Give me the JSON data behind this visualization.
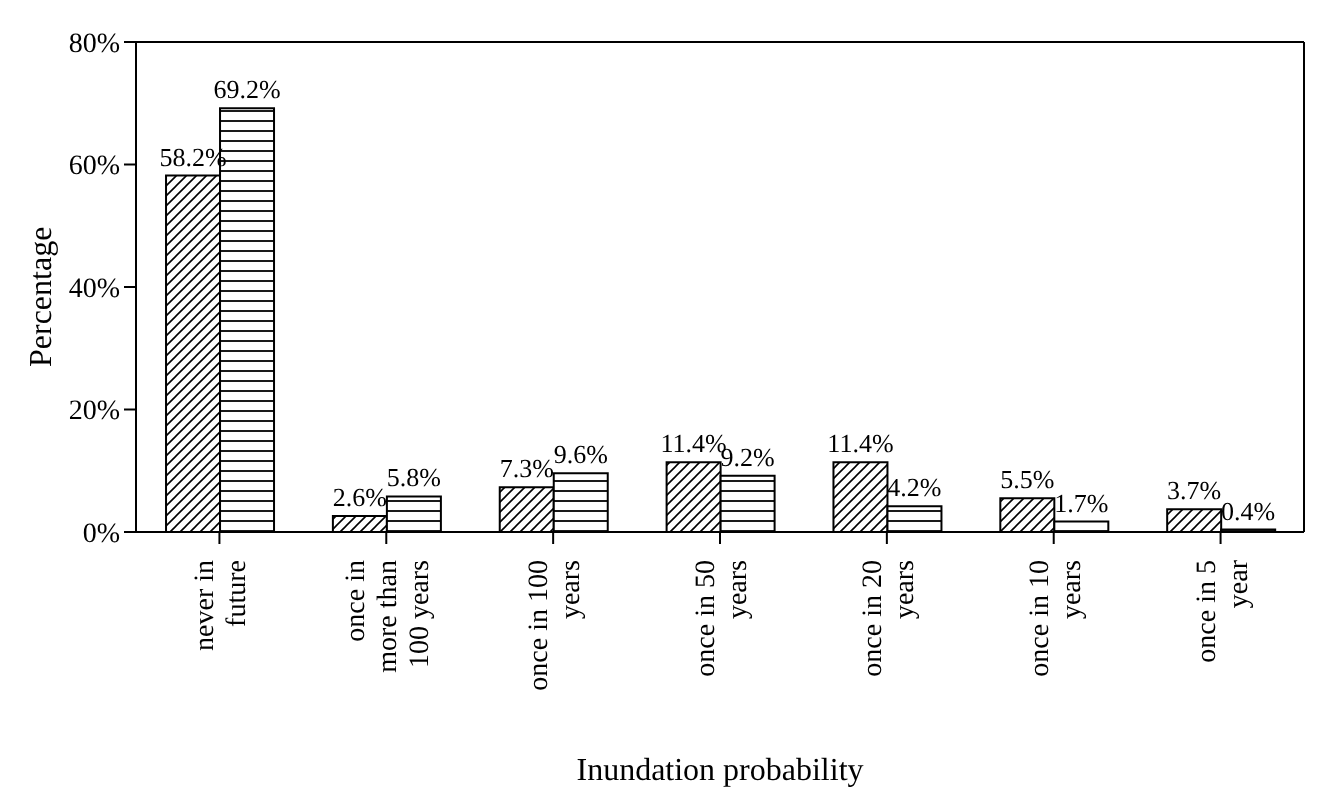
{
  "chart_data": {
    "type": "bar",
    "xlabel": "Inundation probability",
    "ylabel": "Percentage",
    "categories": [
      "never in future",
      "once in more than 100 years",
      "once in 100 years",
      "once in 50 years",
      "once in 20 years",
      "once in 10 years",
      "once in 5 year"
    ],
    "series": [
      {
        "color": "#000000",
        "values": [
          58.2,
          2.6,
          7.3,
          11.4,
          11.4,
          5.5,
          3.7
        ],
        "value_labels": [
          "58.2%",
          "2.6%",
          "7.3%",
          "11.4%",
          "11.4%",
          "5.5%",
          "3.7%"
        ]
      },
      {
        "color": "#000000",
        "values": [
          69.2,
          5.8,
          9.6,
          9.2,
          4.2,
          1.7,
          0.4
        ],
        "value_labels": [
          "69.2%",
          "5.8%",
          "9.6%",
          "9.2%",
          "4.2%",
          "1.7%",
          "0.4%"
        ]
      }
    ],
    "ylim": [
      0,
      80
    ],
    "yticks": [
      {
        "value": 0,
        "label": "0%"
      },
      {
        "value": 20,
        "label": "20%"
      },
      {
        "value": 40,
        "label": "40%"
      },
      {
        "value": 60,
        "label": "60%"
      },
      {
        "value": 80,
        "label": "80%"
      }
    ],
    "grid": false,
    "legend": false
  }
}
